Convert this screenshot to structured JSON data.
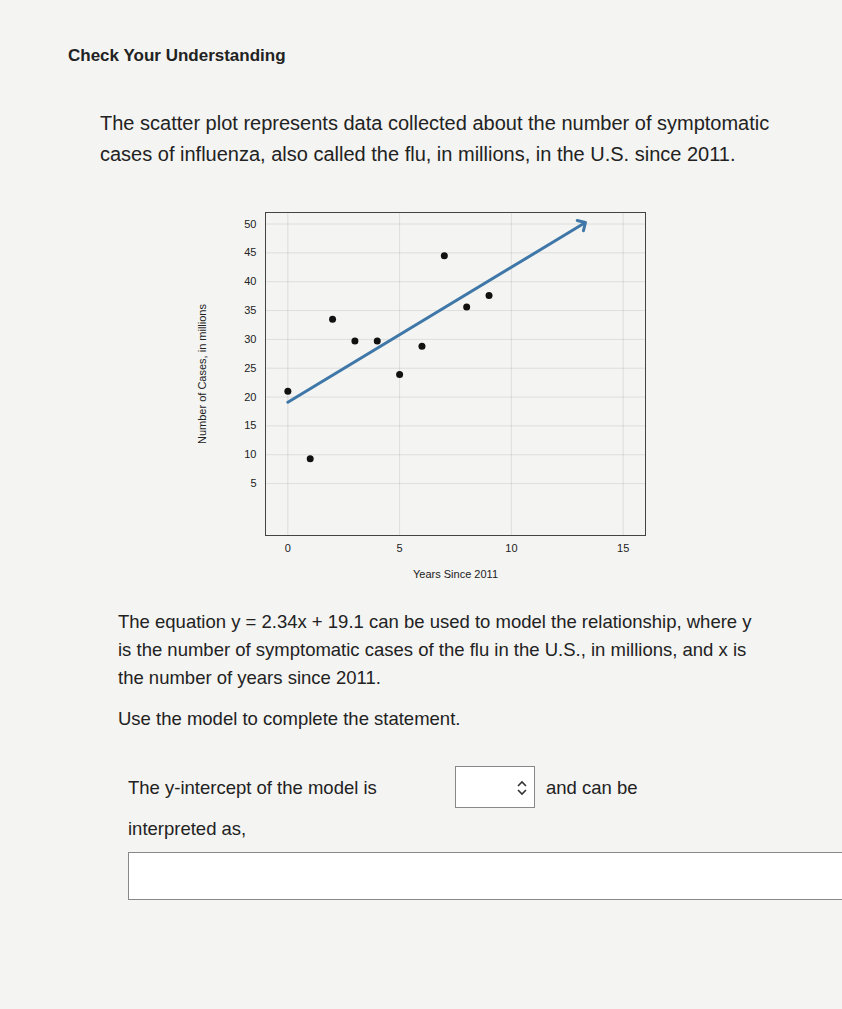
{
  "header": "Check Your Understanding",
  "prompt": "The scatter plot represents data collected about the number of symptomatic cases of influenza, also called the flu, in millions, in the U.S. since 2011.",
  "chart_data": {
    "type": "scatter",
    "x_label": "Years Since 2011",
    "y_label": "Number of Cases, in millions",
    "x": [
      0,
      1,
      2,
      3,
      4,
      5,
      6,
      7,
      8,
      9
    ],
    "values": [
      21,
      9.3,
      33.5,
      29.7,
      29.7,
      23.9,
      28.8,
      44.5,
      35.6,
      37.6
    ],
    "color": "#111111",
    "marker": "circle",
    "trend_line": {
      "type": "line",
      "x": [
        0,
        13.2
      ],
      "values": [
        19.1,
        50
      ],
      "color": "#3f78a8",
      "marker": "arrow"
    },
    "xlim": [
      -1,
      16
    ],
    "ylim": [
      -4,
      52
    ],
    "xticks": [
      0,
      5,
      10,
      15
    ],
    "yticks": [
      5,
      10,
      15,
      20,
      25,
      30,
      35,
      40,
      45,
      50
    ],
    "grid": true
  },
  "equation_text": "The equation y = 2.34x + 19.1 can be used to model the relationship, where y is the number of symptomatic cases of the flu in the U.S., in millions, and x is the number of years since 2011.",
  "instruction": "Use the model to complete the statement.",
  "statement": [
    "The y-intercept of the model is",
    "and can be",
    "interpreted as,"
  ]
}
